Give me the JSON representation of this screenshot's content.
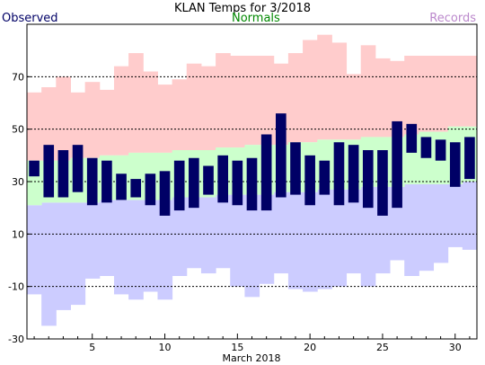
{
  "chart_data": {
    "type": "bar",
    "title": "KLAN Temps for 3/2018",
    "xlabel": "March 2018",
    "legend": {
      "observed": "Observed",
      "normals": "Normals",
      "records": "Records"
    },
    "colors": {
      "observed": "#000066",
      "normals": "#ccffcc",
      "records_high": "#ffcccc",
      "records_low": "#ccccff",
      "header_observed": "#000066",
      "header_normals": "#008800",
      "header_records": "#bb88cc"
    },
    "ylim": [
      -30,
      90
    ],
    "yticks": [
      -30,
      -10,
      10,
      30,
      50,
      70
    ],
    "gridlines": [
      -10,
      10,
      30,
      50,
      70
    ],
    "xticks": [
      5,
      10,
      15,
      20,
      25,
      30
    ],
    "days": [
      1,
      2,
      3,
      4,
      5,
      6,
      7,
      8,
      9,
      10,
      11,
      12,
      13,
      14,
      15,
      16,
      17,
      18,
      19,
      20,
      21,
      22,
      23,
      24,
      25,
      26,
      27,
      28,
      29,
      30,
      31
    ],
    "series": [
      {
        "name": "Observed",
        "high": [
          38,
          44,
          42,
          44,
          39,
          38,
          33,
          31,
          33,
          34,
          38,
          39,
          36,
          40,
          38,
          39,
          48,
          56,
          45,
          40,
          38,
          45,
          44,
          42,
          42,
          53,
          52,
          47,
          46,
          45,
          47
        ],
        "low": [
          32,
          24,
          24,
          26,
          21,
          22,
          23,
          24,
          21,
          17,
          19,
          20,
          25,
          22,
          21,
          19,
          19,
          24,
          25,
          21,
          25,
          21,
          22,
          20,
          17,
          20,
          41,
          39,
          38,
          28,
          31
        ]
      },
      {
        "name": "Normals",
        "high": [
          38,
          38,
          38,
          39,
          39,
          40,
          40,
          41,
          41,
          41,
          42,
          42,
          42,
          43,
          43,
          44,
          44,
          44,
          45,
          45,
          46,
          46,
          46,
          47,
          47,
          47,
          48,
          49,
          49,
          51,
          51
        ],
        "low": [
          21,
          22,
          22,
          22,
          22,
          23,
          23,
          23,
          23,
          23,
          24,
          24,
          24,
          25,
          25,
          25,
          25,
          26,
          26,
          26,
          27,
          27,
          27,
          28,
          28,
          28,
          29,
          29,
          29,
          29,
          30
        ]
      },
      {
        "name": "Records",
        "high": [
          64,
          66,
          70,
          64,
          68,
          65,
          74,
          79,
          72,
          67,
          69,
          75,
          74,
          79,
          78,
          78,
          78,
          75,
          79,
          84,
          86,
          83,
          71,
          82,
          77,
          76,
          78,
          78,
          78,
          78,
          78
        ],
        "low": [
          -13,
          -25,
          -19,
          -17,
          -7,
          -6,
          -13,
          -15,
          -12,
          -15,
          -6,
          -3,
          -5,
          -3,
          -10,
          -14,
          -9,
          -5,
          -11,
          -12,
          -11,
          -10,
          -5,
          -10,
          -5,
          0,
          -6,
          -4,
          -1,
          5,
          4
        ]
      }
    ]
  }
}
